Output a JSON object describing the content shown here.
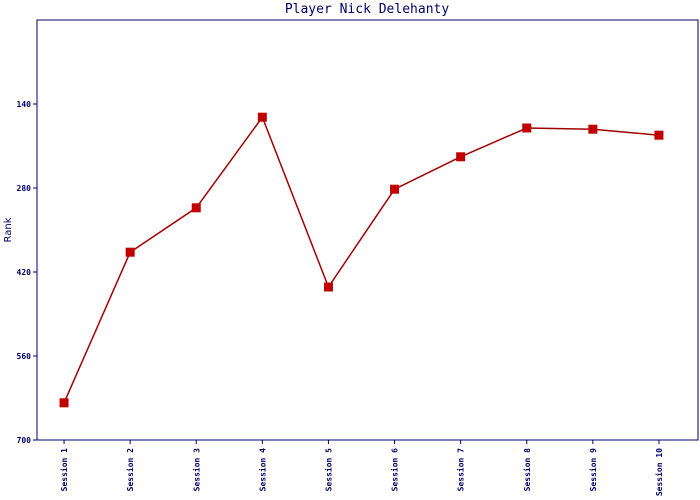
{
  "chart_data": {
    "type": "line",
    "title": "Player Nick Delehanty",
    "y_label": "Rank",
    "categories": [
      "Session 1",
      "Session 2",
      "Session 3",
      "Session 4",
      "Session 5",
      "Session 6",
      "Session 7",
      "Session 8",
      "Session 9",
      "Session 10"
    ],
    "values": [
      638,
      387,
      313,
      162,
      445,
      282,
      228,
      180,
      182,
      192
    ],
    "color": "#c00000",
    "line_color": "#a00000",
    "ylim": [
      0,
      700
    ],
    "y_inverted": true,
    "yticks": [
      140,
      280,
      420,
      560,
      700
    ]
  }
}
